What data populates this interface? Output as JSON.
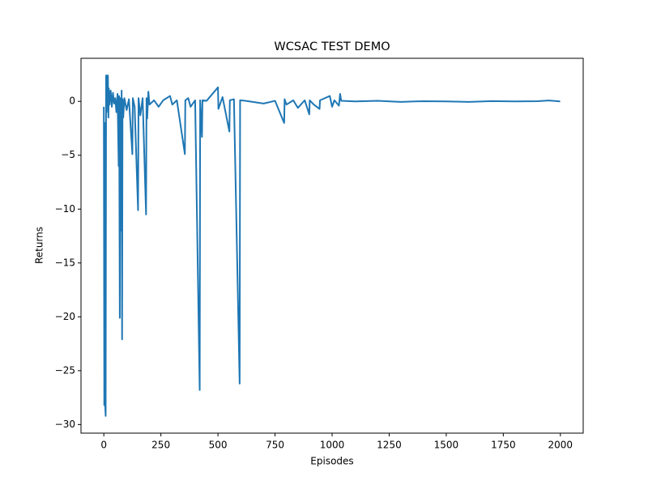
{
  "chart_data": {
    "type": "line",
    "title": "WCSAC TEST DEMO",
    "x_label": "Episodes",
    "y_label": "Returns",
    "x": [
      0,
      2,
      4,
      6,
      8,
      10,
      12,
      14,
      16,
      18,
      20,
      22,
      25,
      30,
      35,
      40,
      45,
      50,
      55,
      60,
      65,
      67,
      70,
      72,
      75,
      78,
      80,
      82,
      85,
      90,
      100,
      110,
      125,
      127,
      135,
      150,
      152,
      160,
      170,
      185,
      187,
      190,
      195,
      200,
      220,
      240,
      260,
      290,
      300,
      320,
      355,
      357,
      370,
      380,
      400,
      420,
      422,
      430,
      432,
      450,
      500,
      502,
      520,
      550,
      552,
      570,
      595,
      597,
      620,
      700,
      750,
      790,
      792,
      800,
      830,
      850,
      880,
      900,
      902,
      920,
      945,
      947,
      990,
      1000,
      1010,
      1030,
      1035,
      1040,
      1100,
      1200,
      1300,
      1400,
      1500,
      1600,
      1700,
      1800,
      1900,
      1950,
      1999
    ],
    "series": [
      {
        "name": "Returns",
        "color": "#1f77b4",
        "values": [
          -0.5,
          -28.2,
          -2,
          -28.3,
          -29.2,
          2.4,
          -1,
          2.4,
          0.5,
          2.4,
          -1.5,
          1.2,
          -0.3,
          1,
          -0.5,
          0.8,
          -0.2,
          0.3,
          -1,
          0.7,
          -6,
          0.5,
          -20.1,
          0.3,
          -12,
          1.0,
          -22.1,
          0.2,
          -1.5,
          0.3,
          -0.8,
          0.2,
          -4.9,
          0.3,
          -0.5,
          -10.1,
          0.3,
          -1.3,
          0.3,
          -10.5,
          0.3,
          -1.6,
          0.9,
          -0.3,
          0.1,
          -0.5,
          0.1,
          0.5,
          -0.3,
          0.1,
          -4.9,
          0.1,
          0.3,
          -0.5,
          0.1,
          -26.8,
          0.1,
          -3.3,
          0.1,
          0.05,
          1.3,
          -0.7,
          0.4,
          -2.8,
          0.1,
          0.2,
          -26.2,
          0.1,
          0.05,
          -0.2,
          0.05,
          -2,
          0.2,
          -0.3,
          0.1,
          -0.6,
          0.1,
          -1.2,
          0.1,
          -0.3,
          -0.7,
          0.1,
          0.5,
          -0.5,
          0.1,
          -0.4,
          0.7,
          0.05,
          0,
          0.05,
          -0.05,
          0.02,
          0,
          -0.05,
          0.03,
          0,
          0.02,
          0.08,
          0
        ]
      }
    ],
    "xlim": [
      -100,
      2100
    ],
    "ylim": [
      -30.8,
      4.0
    ],
    "xticks": [
      0,
      250,
      500,
      750,
      1000,
      1250,
      1500,
      1750,
      2000
    ],
    "yticks": [
      {
        "value": -30,
        "label": "−30"
      },
      {
        "value": -25,
        "label": "−25"
      },
      {
        "value": -20,
        "label": "−20"
      },
      {
        "value": -15,
        "label": "−15"
      },
      {
        "value": -10,
        "label": "−10"
      },
      {
        "value": -5,
        "label": "−5"
      },
      0
    ],
    "grid": false
  }
}
